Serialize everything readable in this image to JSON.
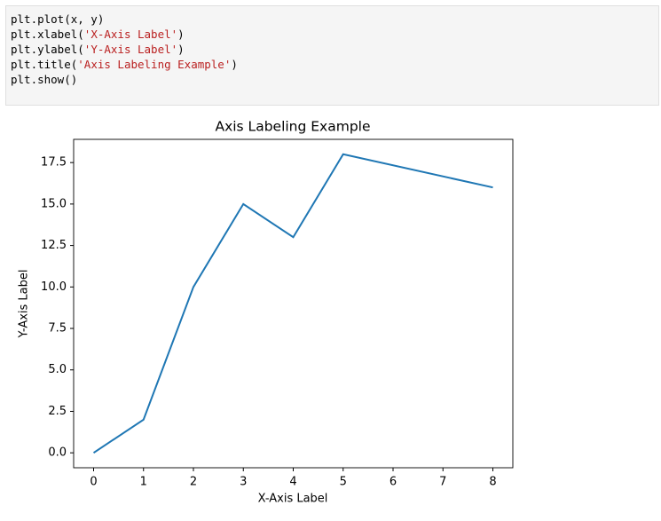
{
  "code": [
    [
      "plt.plot(x, y)"
    ],
    [
      "plt.xlabel(",
      "'X-Axis Label'",
      ")"
    ],
    [
      "plt.ylabel(",
      "'Y-Axis Label'",
      ")"
    ],
    [
      "plt.title(",
      "'Axis Labeling Example'",
      ")"
    ],
    [
      "plt.show()"
    ]
  ],
  "chart_data": {
    "type": "line",
    "title": "Axis Labeling Example",
    "x_label": "X-Axis Label",
    "y_label": "Y-Axis Label",
    "x": [
      0,
      1,
      2,
      3,
      4,
      5,
      8
    ],
    "series": [
      {
        "color": "#1f77b4",
        "values": [
          0,
          2,
          10,
          15,
          13,
          18,
          16
        ]
      }
    ],
    "xlim": [
      -0.4,
      8.4
    ],
    "ylim": [
      -0.9,
      18.9
    ],
    "xticks": [
      0,
      1,
      2,
      3,
      4,
      5,
      6,
      7,
      8
    ],
    "yticks": [
      {
        "value": 0,
        "label": "0.0"
      },
      {
        "value": 2.5,
        "label": "2.5"
      },
      {
        "value": 5,
        "label": "5.0"
      },
      {
        "value": 7.5,
        "label": "7.5"
      },
      {
        "value": 10,
        "label": "10.0"
      },
      {
        "value": 12.5,
        "label": "12.5"
      },
      {
        "value": 15,
        "label": "15.0"
      },
      {
        "value": 17.5,
        "label": "17.5"
      }
    ]
  }
}
